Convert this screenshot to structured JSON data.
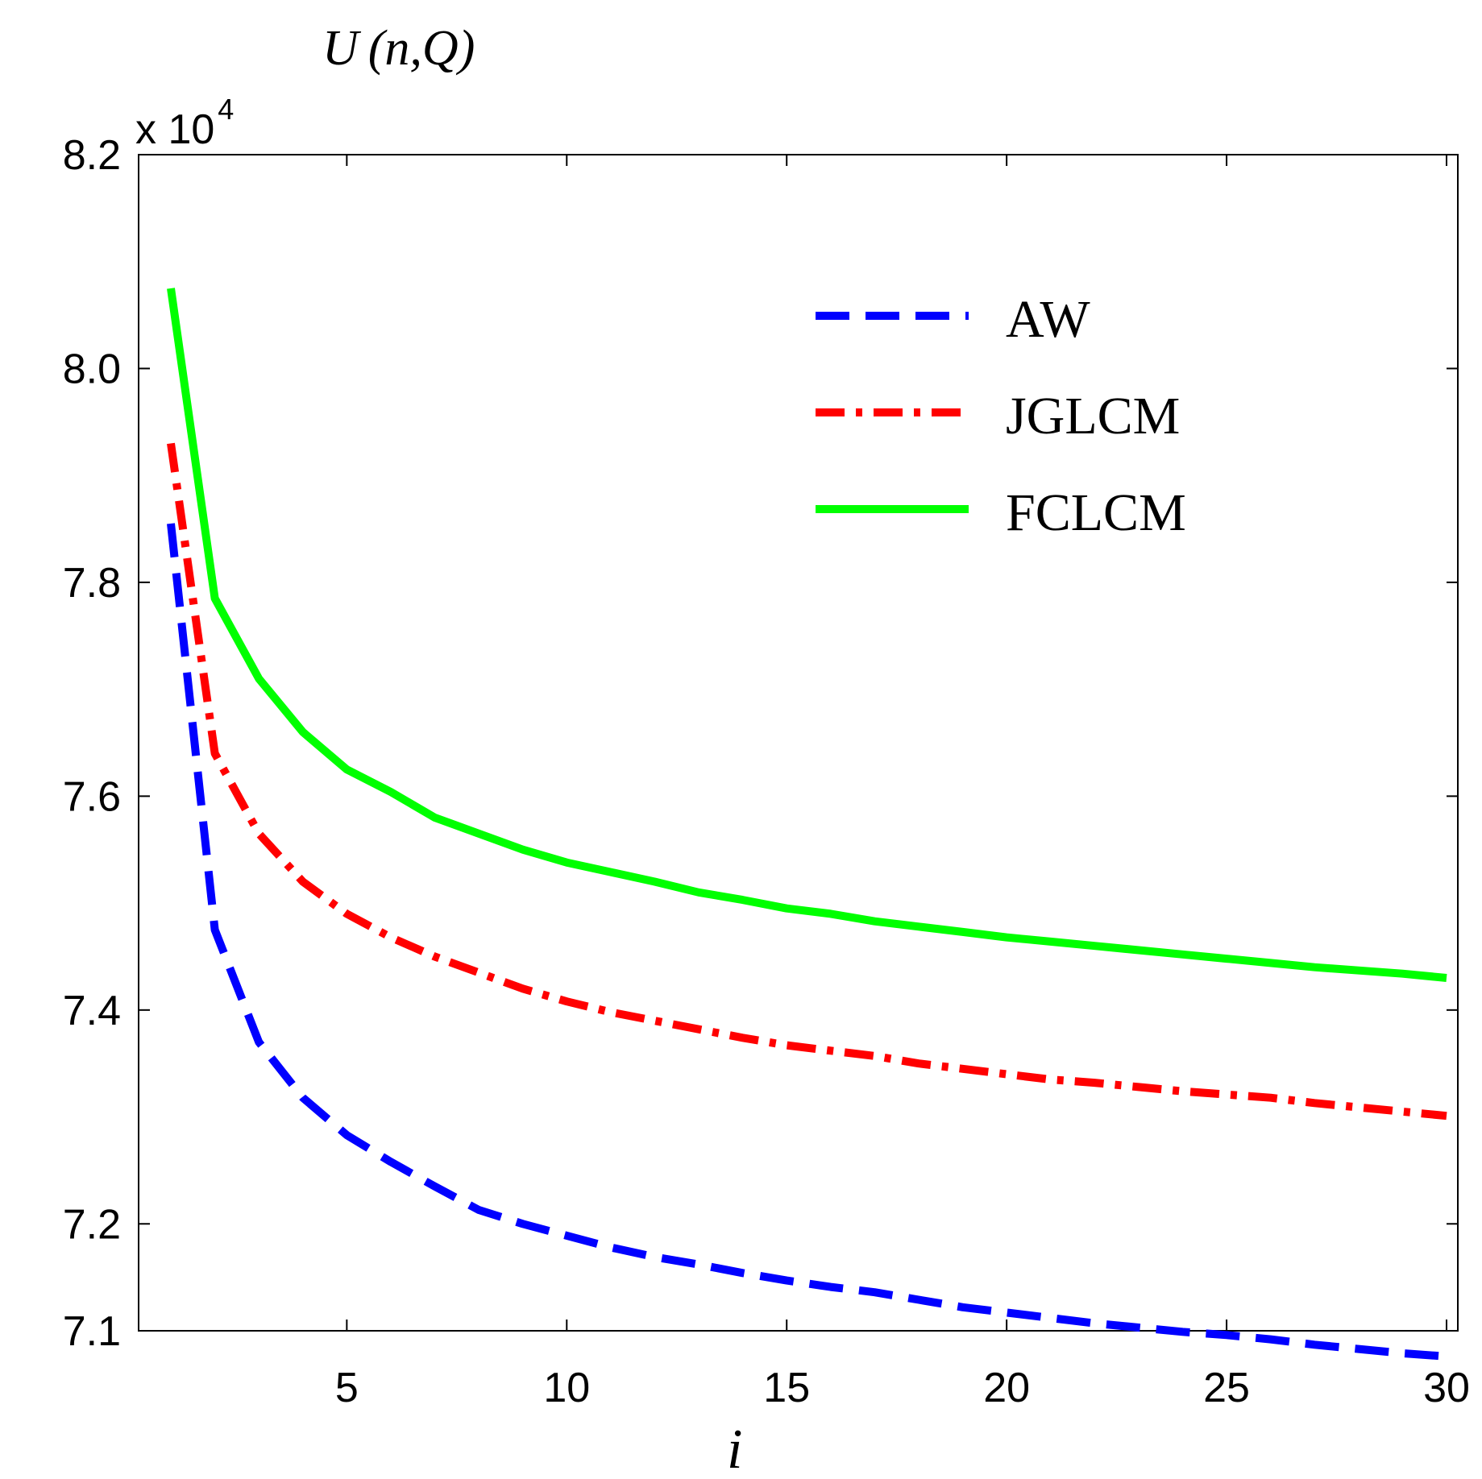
{
  "chart_data": {
    "type": "line",
    "title": "",
    "ylabel_main": "U",
    "ylabel_args": "(n,Q)",
    "multiplier_text": "x 10",
    "multiplier_exp": "4",
    "xlabel": "i",
    "xlim": [
      1,
      30
    ],
    "ylim": [
      7.1,
      8.2
    ],
    "xticks": [
      5,
      10,
      15,
      20,
      25,
      30
    ],
    "xtick_labels": [
      "5",
      "10",
      "15",
      "20",
      "25",
      "30"
    ],
    "yticks": [
      7.1,
      7.2,
      7.4,
      7.6,
      7.8,
      8.0,
      8.2
    ],
    "ytick_labels": [
      "7.1",
      "7.2",
      "7.4",
      "7.6",
      "7.8",
      "8.0",
      "8.2"
    ],
    "legend_position": "top-right",
    "x": [
      1,
      2,
      3,
      4,
      5,
      6,
      7,
      8,
      9,
      10,
      11,
      12,
      13,
      14,
      15,
      16,
      17,
      18,
      19,
      20,
      21,
      22,
      23,
      24,
      25,
      26,
      27,
      28,
      29,
      30
    ],
    "series": [
      {
        "name": "AW",
        "color": "#0000ff",
        "style": "dashed",
        "values": [
          7.855,
          7.475,
          7.37,
          7.318,
          7.283,
          7.258,
          7.235,
          7.213,
          7.2,
          7.189,
          7.178,
          7.169,
          7.162,
          7.154,
          7.147,
          7.141,
          7.136,
          7.129,
          7.122,
          7.117,
          7.112,
          7.107,
          7.103,
          7.099,
          7.096,
          7.092,
          7.087,
          7.083,
          7.079,
          7.076
        ]
      },
      {
        "name": "JGLCM",
        "color": "#ff0000",
        "style": "dash-dot",
        "values": [
          7.93,
          7.64,
          7.565,
          7.52,
          7.49,
          7.468,
          7.45,
          7.435,
          7.42,
          7.408,
          7.398,
          7.39,
          7.382,
          7.374,
          7.367,
          7.362,
          7.357,
          7.35,
          7.345,
          7.34,
          7.335,
          7.332,
          7.328,
          7.324,
          7.321,
          7.318,
          7.313,
          7.309,
          7.305,
          7.301
        ]
      },
      {
        "name": "FCLCM",
        "color": "#00ff00",
        "style": "solid",
        "values": [
          8.075,
          7.785,
          7.71,
          7.66,
          7.625,
          7.604,
          7.58,
          7.565,
          7.55,
          7.538,
          7.529,
          7.52,
          7.51,
          7.503,
          7.495,
          7.49,
          7.483,
          7.478,
          7.473,
          7.468,
          7.464,
          7.46,
          7.456,
          7.452,
          7.448,
          7.444,
          7.44,
          7.437,
          7.434,
          7.43
        ]
      }
    ]
  }
}
